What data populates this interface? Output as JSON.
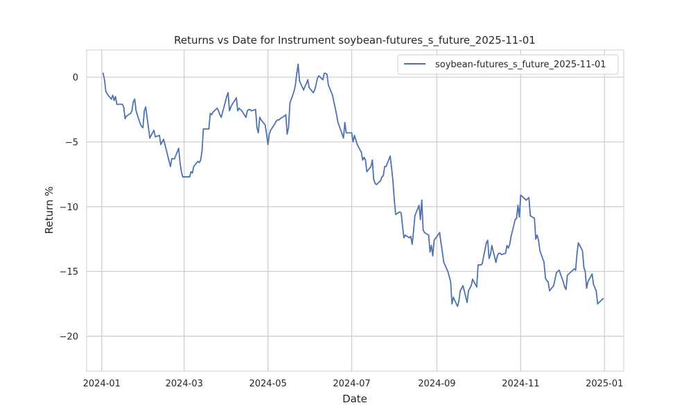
{
  "chart_data": {
    "type": "line",
    "title": "Returns vs Date for Instrument soybean-futures_s_future_2025-11-01",
    "xlabel": "Date",
    "ylabel": "Return %",
    "xlim": [
      "2023-12-21",
      "2025-01-15"
    ],
    "ylim": [
      -22.7,
      2.1
    ],
    "x_ticks": [
      "2024-01",
      "2024-03",
      "2024-05",
      "2024-07",
      "2024-09",
      "2024-11",
      "2025-01"
    ],
    "y_ticks": [
      0,
      -5,
      -10,
      -15,
      -20
    ],
    "grid": true,
    "legend_position": "top-right",
    "colors": {
      "series": "#4c72b0",
      "grid": "#cccccc",
      "axes": "#cccccc",
      "background": "#ffffff"
    },
    "series": [
      {
        "name": "soybean-futures_s_future_2025-11-01",
        "points": [
          [
            "2024-01-02",
            0.3
          ],
          [
            "2024-01-03",
            -0.2
          ],
          [
            "2024-01-04",
            -1.1
          ],
          [
            "2024-01-05",
            -1.3
          ],
          [
            "2024-01-08",
            -1.7
          ],
          [
            "2024-01-09",
            -1.4
          ],
          [
            "2024-01-10",
            -1.8
          ],
          [
            "2024-01-11",
            -1.5
          ],
          [
            "2024-01-12",
            -2.1
          ],
          [
            "2024-01-16",
            -2.1
          ],
          [
            "2024-01-17",
            -2.3
          ],
          [
            "2024-01-18",
            -3.2
          ],
          [
            "2024-01-19",
            -3.0
          ],
          [
            "2024-01-22",
            -2.8
          ],
          [
            "2024-01-23",
            -2.6
          ],
          [
            "2024-01-24",
            -1.9
          ],
          [
            "2024-01-25",
            -1.7
          ],
          [
            "2024-01-26",
            -2.6
          ],
          [
            "2024-01-29",
            -3.6
          ],
          [
            "2024-01-30",
            -3.8
          ],
          [
            "2024-01-31",
            -3.9
          ],
          [
            "2024-02-01",
            -2.6
          ],
          [
            "2024-02-02",
            -2.3
          ],
          [
            "2024-02-05",
            -4.7
          ],
          [
            "2024-02-06",
            -4.5
          ],
          [
            "2024-02-07",
            -4.3
          ],
          [
            "2024-02-08",
            -4.1
          ],
          [
            "2024-02-09",
            -4.6
          ],
          [
            "2024-02-12",
            -4.5
          ],
          [
            "2024-02-13",
            -5.2
          ],
          [
            "2024-02-14",
            -5.0
          ],
          [
            "2024-02-15",
            -4.8
          ],
          [
            "2024-02-16",
            -5.2
          ],
          [
            "2024-02-20",
            -6.9
          ],
          [
            "2024-02-21",
            -6.3
          ],
          [
            "2024-02-22",
            -6.3
          ],
          [
            "2024-02-23",
            -6.3
          ],
          [
            "2024-02-26",
            -5.5
          ],
          [
            "2024-02-27",
            -6.6
          ],
          [
            "2024-02-28",
            -7.3
          ],
          [
            "2024-02-29",
            -7.7
          ],
          [
            "2024-03-01",
            -7.7
          ],
          [
            "2024-03-04",
            -7.7
          ],
          [
            "2024-03-05",
            -7.7
          ],
          [
            "2024-03-06",
            -7.3
          ],
          [
            "2024-03-07",
            -7.4
          ],
          [
            "2024-03-08",
            -6.9
          ],
          [
            "2024-03-11",
            -6.5
          ],
          [
            "2024-03-12",
            -6.6
          ],
          [
            "2024-03-13",
            -6.4
          ],
          [
            "2024-03-14",
            -5.7
          ],
          [
            "2024-03-15",
            -4.0
          ],
          [
            "2024-03-18",
            -4.0
          ],
          [
            "2024-03-19",
            -4.0
          ],
          [
            "2024-03-20",
            -2.8
          ],
          [
            "2024-03-21",
            -2.9
          ],
          [
            "2024-03-22",
            -2.7
          ],
          [
            "2024-03-25",
            -2.4
          ],
          [
            "2024-03-26",
            -2.6
          ],
          [
            "2024-03-27",
            -2.9
          ],
          [
            "2024-03-28",
            -3.1
          ],
          [
            "2024-04-01",
            -1.5
          ],
          [
            "2024-04-02",
            -1.2
          ],
          [
            "2024-04-03",
            -2.6
          ],
          [
            "2024-04-04",
            -2.3
          ],
          [
            "2024-04-05",
            -2.1
          ],
          [
            "2024-04-08",
            -1.6
          ],
          [
            "2024-04-09",
            -2.6
          ],
          [
            "2024-04-10",
            -2.4
          ],
          [
            "2024-04-11",
            -2.5
          ],
          [
            "2024-04-12",
            -2.6
          ],
          [
            "2024-04-15",
            -3.1
          ],
          [
            "2024-04-16",
            -2.6
          ],
          [
            "2024-04-17",
            -2.5
          ],
          [
            "2024-04-18",
            -2.5
          ],
          [
            "2024-04-19",
            -2.6
          ],
          [
            "2024-04-22",
            -2.5
          ],
          [
            "2024-04-23",
            -3.9
          ],
          [
            "2024-04-24",
            -4.3
          ],
          [
            "2024-04-25",
            -3.1
          ],
          [
            "2024-04-26",
            -3.3
          ],
          [
            "2024-04-29",
            -3.7
          ],
          [
            "2024-04-30",
            -4.4
          ],
          [
            "2024-05-01",
            -5.2
          ],
          [
            "2024-05-02",
            -4.4
          ],
          [
            "2024-05-03",
            -4.1
          ],
          [
            "2024-05-06",
            -3.6
          ],
          [
            "2024-05-07",
            -3.4
          ],
          [
            "2024-05-08",
            -3.3
          ],
          [
            "2024-05-09",
            -3.3
          ],
          [
            "2024-05-10",
            -3.2
          ],
          [
            "2024-05-13",
            -3.0
          ],
          [
            "2024-05-14",
            -2.9
          ],
          [
            "2024-05-15",
            -4.4
          ],
          [
            "2024-05-16",
            -3.9
          ],
          [
            "2024-05-17",
            -2.0
          ],
          [
            "2024-05-20",
            -1.1
          ],
          [
            "2024-05-21",
            -0.6
          ],
          [
            "2024-05-22",
            0.3
          ],
          [
            "2024-05-23",
            1.0
          ],
          [
            "2024-05-24",
            -0.3
          ],
          [
            "2024-05-27",
            -1.0
          ],
          [
            "2024-05-28",
            -0.7
          ],
          [
            "2024-05-29",
            -0.5
          ],
          [
            "2024-05-30",
            -0.2
          ],
          [
            "2024-05-31",
            -0.8
          ],
          [
            "2024-06-03",
            -1.2
          ],
          [
            "2024-06-04",
            -1.0
          ],
          [
            "2024-06-05",
            -0.6
          ],
          [
            "2024-06-06",
            -0.1
          ],
          [
            "2024-06-07",
            0.1
          ],
          [
            "2024-06-10",
            -0.2
          ],
          [
            "2024-06-11",
            0.3
          ],
          [
            "2024-06-12",
            0.3
          ],
          [
            "2024-06-13",
            0.2
          ],
          [
            "2024-06-14",
            -0.6
          ],
          [
            "2024-06-17",
            -1.4
          ],
          [
            "2024-06-18",
            -1.9
          ],
          [
            "2024-06-19",
            -2.4
          ],
          [
            "2024-06-20",
            -2.9
          ],
          [
            "2024-06-21",
            -3.5
          ],
          [
            "2024-06-24",
            -4.4
          ],
          [
            "2024-06-25",
            -4.7
          ],
          [
            "2024-06-26",
            -3.5
          ],
          [
            "2024-06-27",
            -4.3
          ],
          [
            "2024-06-28",
            -4.3
          ],
          [
            "2024-07-01",
            -4.3
          ],
          [
            "2024-07-02",
            -5.0
          ],
          [
            "2024-07-03",
            -4.5
          ],
          [
            "2024-07-05",
            -5.2
          ],
          [
            "2024-07-08",
            -5.8
          ],
          [
            "2024-07-09",
            -6.4
          ],
          [
            "2024-07-10",
            -6.2
          ],
          [
            "2024-07-11",
            -6.4
          ],
          [
            "2024-07-12",
            -7.3
          ],
          [
            "2024-07-15",
            -6.9
          ],
          [
            "2024-07-16",
            -6.4
          ],
          [
            "2024-07-17",
            -7.9
          ],
          [
            "2024-07-18",
            -8.2
          ],
          [
            "2024-07-19",
            -8.3
          ],
          [
            "2024-07-22",
            -8.0
          ],
          [
            "2024-07-23",
            -7.7
          ],
          [
            "2024-07-24",
            -7.6
          ],
          [
            "2024-07-25",
            -6.9
          ],
          [
            "2024-07-26",
            -6.9
          ],
          [
            "2024-07-29",
            -6.1
          ],
          [
            "2024-07-30",
            -7.0
          ],
          [
            "2024-07-31",
            -8.0
          ],
          [
            "2024-08-01",
            -9.5
          ],
          [
            "2024-08-02",
            -10.6
          ],
          [
            "2024-08-05",
            -10.4
          ],
          [
            "2024-08-06",
            -10.5
          ],
          [
            "2024-08-07",
            -11.5
          ],
          [
            "2024-08-08",
            -12.4
          ],
          [
            "2024-08-09",
            -12.2
          ],
          [
            "2024-08-12",
            -12.4
          ],
          [
            "2024-08-13",
            -12.3
          ],
          [
            "2024-08-14",
            -12.9
          ],
          [
            "2024-08-15",
            -11.9
          ],
          [
            "2024-08-16",
            -10.7
          ],
          [
            "2024-08-19",
            -9.9
          ],
          [
            "2024-08-20",
            -11.0
          ],
          [
            "2024-08-21",
            -9.5
          ],
          [
            "2024-08-22",
            -11.8
          ],
          [
            "2024-08-23",
            -12.0
          ],
          [
            "2024-08-26",
            -12.2
          ],
          [
            "2024-08-27",
            -13.5
          ],
          [
            "2024-08-28",
            -13.0
          ],
          [
            "2024-08-29",
            -13.8
          ],
          [
            "2024-08-30",
            -12.6
          ],
          [
            "2024-09-03",
            -12.0
          ],
          [
            "2024-09-04",
            -12.8
          ],
          [
            "2024-09-05",
            -13.5
          ],
          [
            "2024-09-06",
            -14.3
          ],
          [
            "2024-09-09",
            -15.0
          ],
          [
            "2024-09-10",
            -15.4
          ],
          [
            "2024-09-11",
            -15.8
          ],
          [
            "2024-09-12",
            -17.5
          ],
          [
            "2024-09-13",
            -17.0
          ],
          [
            "2024-09-16",
            -17.7
          ],
          [
            "2024-09-17",
            -17.3
          ],
          [
            "2024-09-18",
            -16.5
          ],
          [
            "2024-09-19",
            -16.3
          ],
          [
            "2024-09-20",
            -16.1
          ],
          [
            "2024-09-23",
            -17.4
          ],
          [
            "2024-09-24",
            -16.5
          ],
          [
            "2024-09-25",
            -16.3
          ],
          [
            "2024-09-26",
            -16.1
          ],
          [
            "2024-09-27",
            -15.6
          ],
          [
            "2024-09-30",
            -16.2
          ],
          [
            "2024-10-01",
            -14.5
          ],
          [
            "2024-10-02",
            -14.5
          ],
          [
            "2024-10-03",
            -14.5
          ],
          [
            "2024-10-04",
            -14.4
          ],
          [
            "2024-10-07",
            -12.8
          ],
          [
            "2024-10-08",
            -12.6
          ],
          [
            "2024-10-09",
            -14.0
          ],
          [
            "2024-10-10",
            -13.7
          ],
          [
            "2024-10-11",
            -13.0
          ],
          [
            "2024-10-14",
            -14.3
          ],
          [
            "2024-10-15",
            -13.8
          ],
          [
            "2024-10-16",
            -13.6
          ],
          [
            "2024-10-17",
            -13.6
          ],
          [
            "2024-10-18",
            -13.7
          ],
          [
            "2024-10-21",
            -13.6
          ],
          [
            "2024-10-22",
            -13.0
          ],
          [
            "2024-10-23",
            -13.2
          ],
          [
            "2024-10-24",
            -12.9
          ],
          [
            "2024-10-25",
            -12.3
          ],
          [
            "2024-10-28",
            -11.0
          ],
          [
            "2024-10-29",
            -10.9
          ],
          [
            "2024-10-30",
            -9.9
          ],
          [
            "2024-10-31",
            -10.8
          ],
          [
            "2024-11-01",
            -9.1
          ],
          [
            "2024-11-04",
            -9.4
          ],
          [
            "2024-11-05",
            -9.5
          ],
          [
            "2024-11-06",
            -9.4
          ],
          [
            "2024-11-07",
            -9.3
          ],
          [
            "2024-11-08",
            -10.7
          ],
          [
            "2024-11-11",
            -10.9
          ],
          [
            "2024-11-12",
            -12.5
          ],
          [
            "2024-11-13",
            -12.2
          ],
          [
            "2024-11-14",
            -12.6
          ],
          [
            "2024-11-15",
            -13.4
          ],
          [
            "2024-11-18",
            -14.3
          ],
          [
            "2024-11-19",
            -15.5
          ],
          [
            "2024-11-20",
            -15.7
          ],
          [
            "2024-11-21",
            -15.8
          ],
          [
            "2024-11-22",
            -16.5
          ],
          [
            "2024-11-25",
            -16.1
          ],
          [
            "2024-11-26",
            -15.6
          ],
          [
            "2024-11-27",
            -15.1
          ],
          [
            "2024-11-29",
            -14.9
          ],
          [
            "2024-12-02",
            -15.8
          ],
          [
            "2024-12-03",
            -16.2
          ],
          [
            "2024-12-04",
            -16.4
          ],
          [
            "2024-12-05",
            -15.3
          ],
          [
            "2024-12-06",
            -15.2
          ],
          [
            "2024-12-09",
            -14.9
          ],
          [
            "2024-12-10",
            -14.8
          ],
          [
            "2024-12-11",
            -14.9
          ],
          [
            "2024-12-12",
            -13.6
          ],
          [
            "2024-12-13",
            -12.8
          ],
          [
            "2024-12-16",
            -13.4
          ],
          [
            "2024-12-17",
            -14.7
          ],
          [
            "2024-12-18",
            -15.0
          ],
          [
            "2024-12-19",
            -16.3
          ],
          [
            "2024-12-20",
            -15.8
          ],
          [
            "2024-12-23",
            -15.2
          ],
          [
            "2024-12-24",
            -16.0
          ],
          [
            "2024-12-26",
            -16.5
          ],
          [
            "2024-12-27",
            -17.5
          ],
          [
            "2024-12-30",
            -17.2
          ],
          [
            "2024-12-31",
            -17.1
          ]
        ]
      }
    ]
  }
}
